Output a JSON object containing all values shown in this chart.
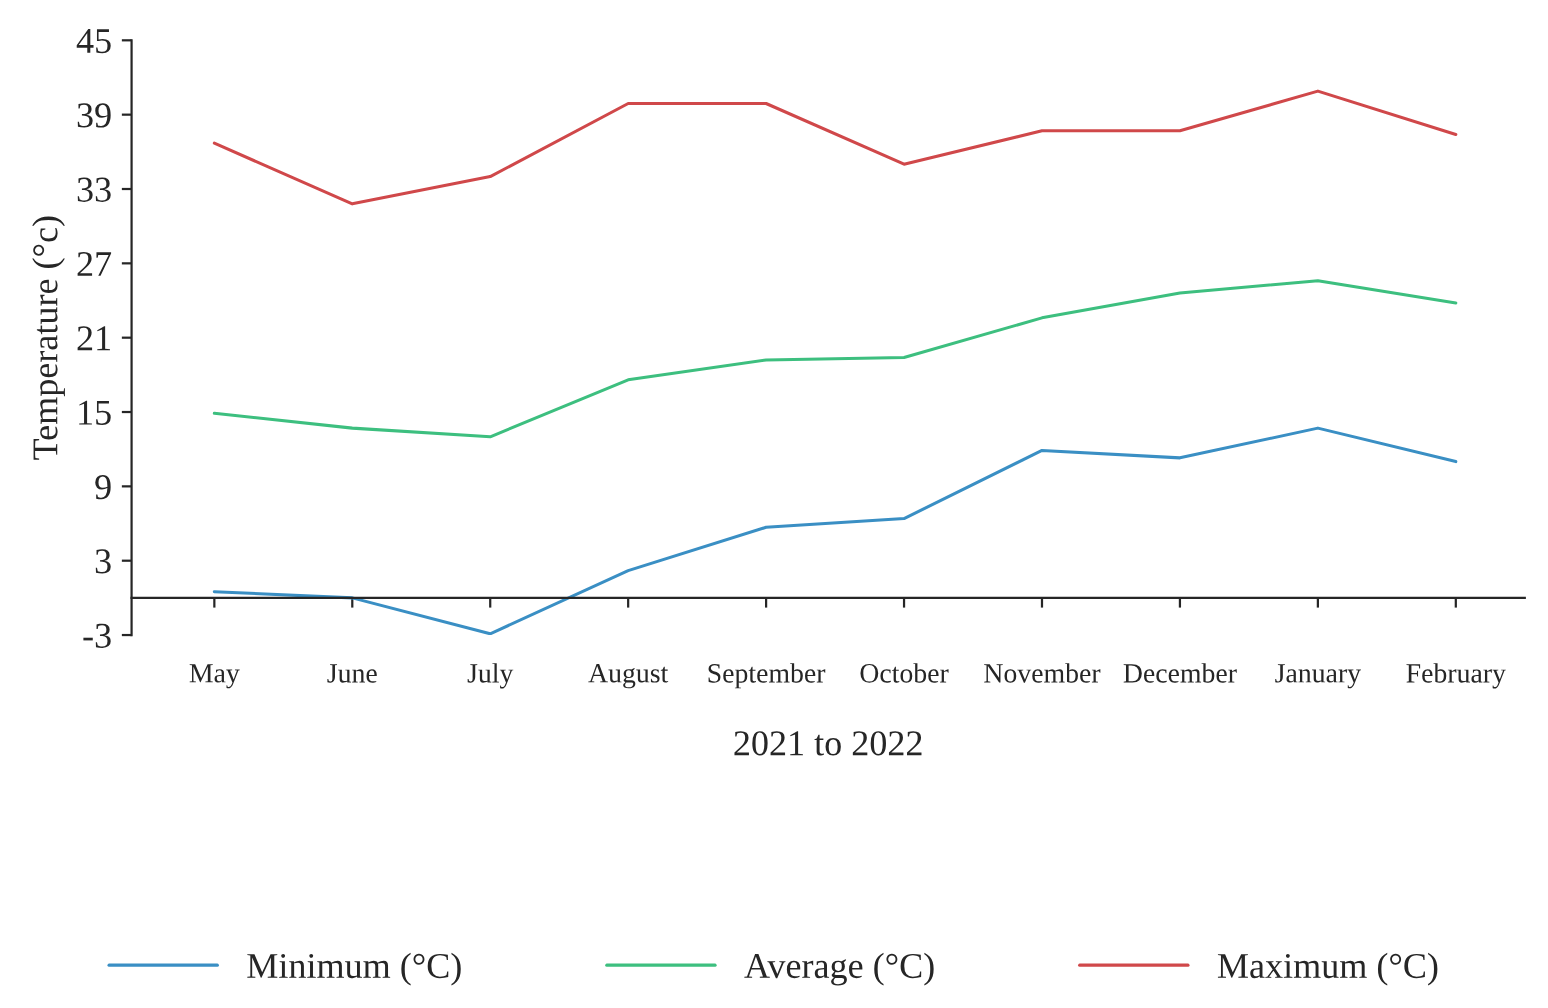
{
  "chart_data": {
    "type": "line",
    "xlabel": "2021 to 2022",
    "ylabel": "Temperature (°c)",
    "categories": [
      "May",
      "June",
      "July",
      "August",
      "September",
      "October",
      "November",
      "December",
      "January",
      "February"
    ],
    "series": [
      {
        "name": "Minimum (°C)",
        "color": "#3a8fc4",
        "values": [
          0.5,
          0,
          -2.9,
          2.2,
          5.7,
          6.4,
          11.9,
          11.3,
          13.7,
          11.0
        ]
      },
      {
        "name": "Average (°C)",
        "color": "#3dbf7f",
        "values": [
          14.9,
          13.7,
          13.0,
          17.6,
          19.2,
          19.4,
          22.6,
          24.6,
          25.6,
          23.8
        ]
      },
      {
        "name": "Maximum (°C)",
        "color": "#d0484a",
        "values": [
          36.7,
          31.8,
          34.0,
          39.9,
          39.9,
          35.0,
          37.7,
          37.7,
          40.9,
          37.4
        ]
      }
    ],
    "ylim": [
      -3,
      45
    ],
    "yticks": [
      -3,
      3,
      9,
      15,
      21,
      27,
      33,
      39,
      45
    ],
    "grid": false,
    "legend": "bottom",
    "marker": "none",
    "line_style": "solid"
  }
}
